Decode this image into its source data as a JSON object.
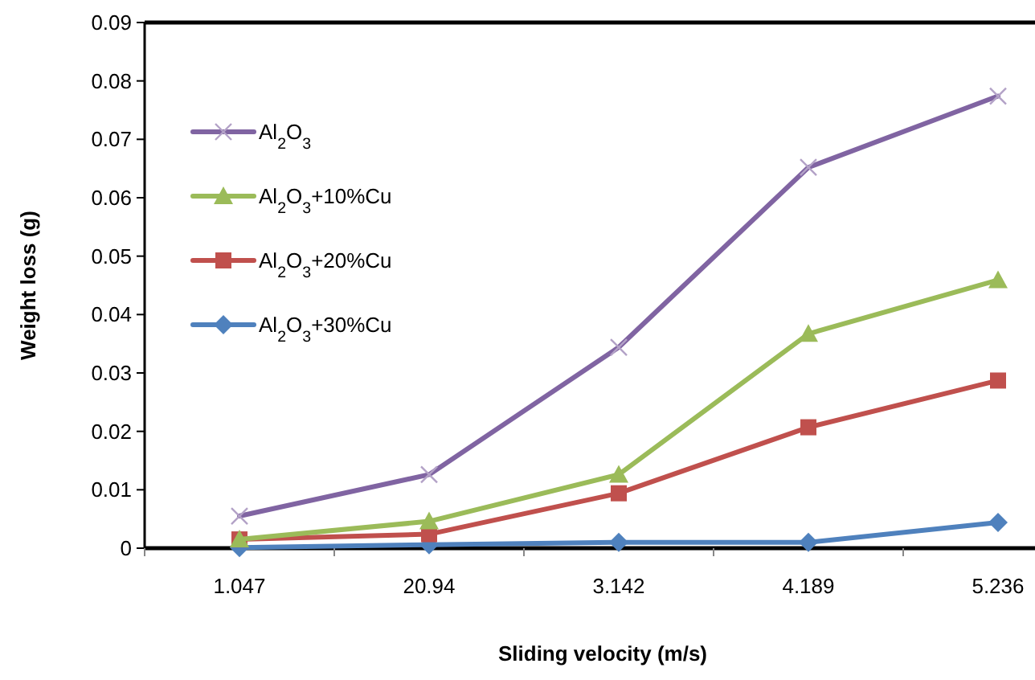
{
  "chart_data": {
    "type": "line",
    "xlabel": "Sliding velocity (m/s)",
    "ylabel": "Weight loss (g)",
    "categories": [
      "1.047",
      "20.94",
      "3.142",
      "4.189",
      "5.236"
    ],
    "ylim": [
      0,
      0.09
    ],
    "yticks": [
      0,
      0.01,
      0.02,
      0.03,
      0.04,
      0.05,
      0.06,
      0.07,
      0.08,
      0.09
    ],
    "grid": false,
    "legend": "top left",
    "series": [
      {
        "name": "Al$_{2}$O$_{3}$",
        "color": "#8064a2",
        "marker": "cross",
        "values": [
          0.0055,
          0.0126,
          0.0344,
          0.0652,
          0.0774
        ]
      },
      {
        "name": "Al$_{2}$O$_{3}$+10%Cu",
        "color": "#9bbb59",
        "marker": "triangle",
        "values": [
          0.0015,
          0.0046,
          0.0126,
          0.0367,
          0.0459
        ]
      },
      {
        "name": "Al$_{2}$O$_{3}$+20%Cu",
        "color": "#c0504d",
        "marker": "square",
        "values": [
          0.0015,
          0.0024,
          0.0094,
          0.0207,
          0.0287
        ]
      },
      {
        "name": "Al$_{2}$O$_{3}$+30%Cu",
        "color": "#4f81bd",
        "marker": "diamond",
        "values": [
          0.0001,
          0.0006,
          0.001,
          0.001,
          0.0044
        ]
      }
    ]
  }
}
